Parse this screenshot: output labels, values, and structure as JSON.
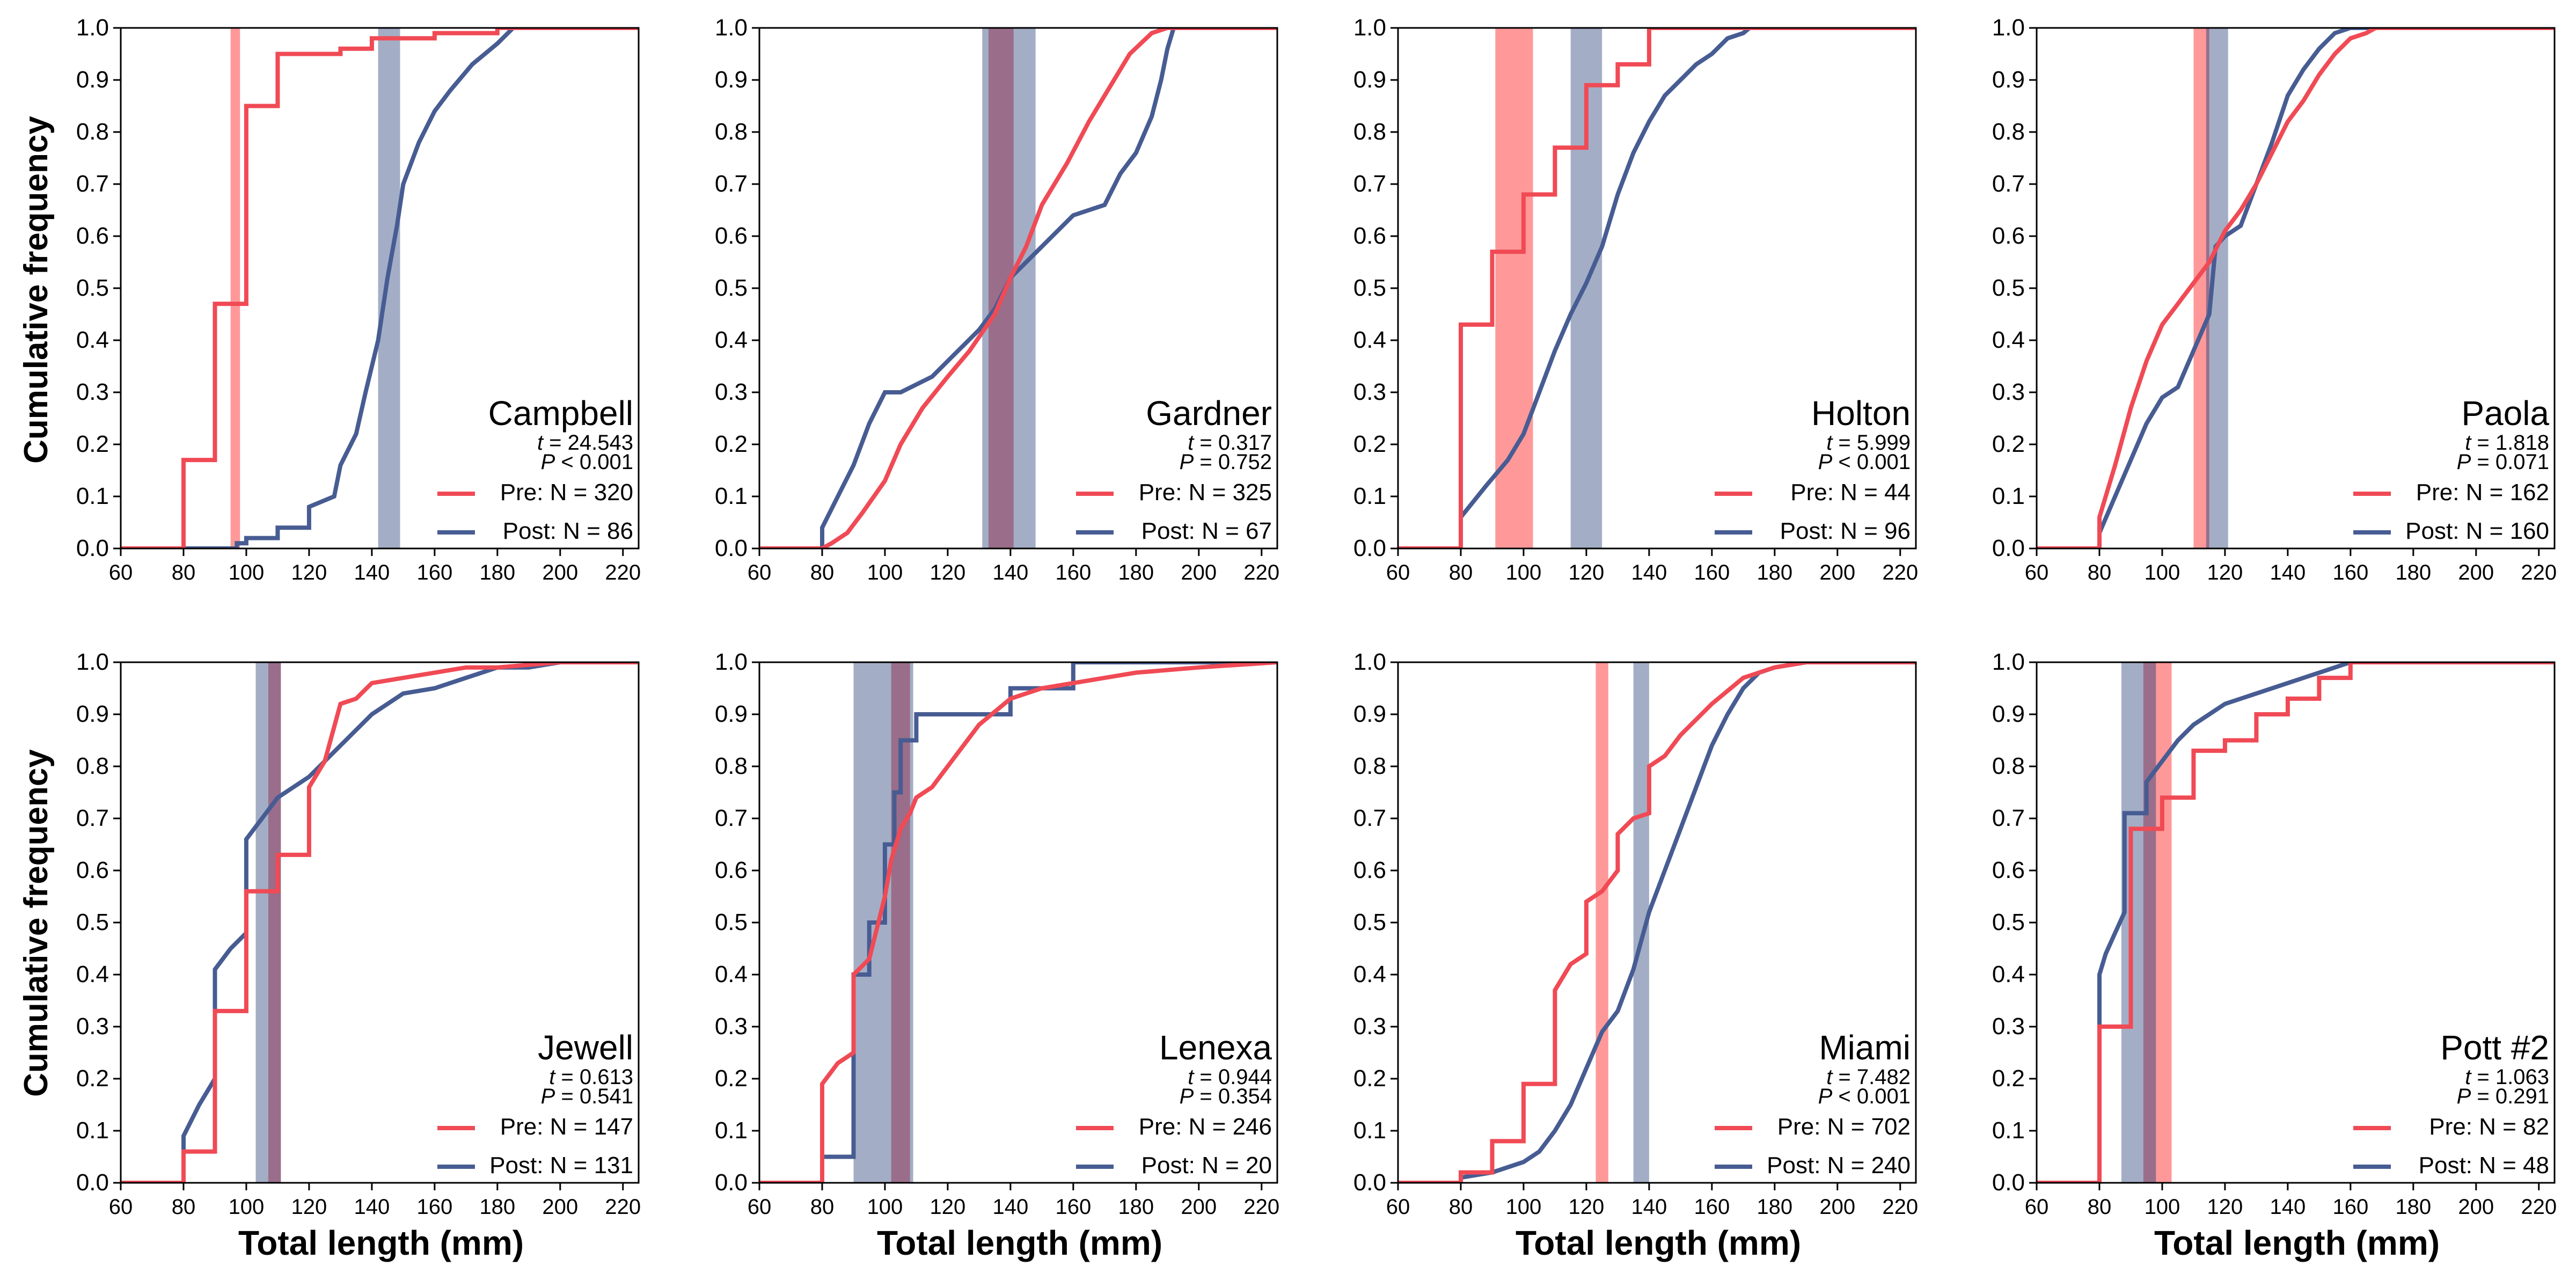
{
  "colors": {
    "pre": "#f04a55",
    "post": "#475c92",
    "pre_band": "#ff9999",
    "post_band": "#a3aec6",
    "overlap_band": "#9a6e8a"
  },
  "axis_labels": {
    "x": "Total length (mm)",
    "y": "Cumulative frequency"
  },
  "chart_data": [
    {
      "type": "line",
      "site": "Campbell",
      "t": "24.543",
      "p_rel": "<",
      "p": "0.001",
      "xlim": [
        60,
        225
      ],
      "ylim": [
        0,
        1
      ],
      "xticks": [
        60,
        80,
        100,
        120,
        140,
        160,
        180,
        200,
        220
      ],
      "yticks": [
        "0.0",
        "0.1",
        "0.2",
        "0.3",
        "0.4",
        "0.5",
        "0.6",
        "0.7",
        "0.8",
        "0.9",
        "1.0"
      ],
      "pre": {
        "label": "Pre: N = 320",
        "band": [
          95,
          98
        ],
        "x": [
          60,
          80,
          80,
          90,
          90,
          100,
          100,
          110,
          110,
          130,
          130,
          140,
          140,
          160,
          160,
          180,
          180,
          225
        ],
        "y": [
          0,
          0,
          0.17,
          0.17,
          0.47,
          0.47,
          0.85,
          0.85,
          0.95,
          0.95,
          0.96,
          0.96,
          0.98,
          0.98,
          0.99,
          0.99,
          1.0,
          1.0
        ]
      },
      "post": {
        "label": "Post: N = 86",
        "band": [
          142,
          149
        ],
        "x": [
          60,
          97,
          97,
          100,
          100,
          110,
          110,
          120,
          120,
          128,
          130,
          135,
          138,
          142,
          145,
          148,
          150,
          155,
          160,
          165,
          172,
          180,
          185,
          225
        ],
        "y": [
          0,
          0,
          0.01,
          0.01,
          0.02,
          0.02,
          0.04,
          0.04,
          0.08,
          0.1,
          0.16,
          0.22,
          0.3,
          0.4,
          0.52,
          0.62,
          0.7,
          0.78,
          0.84,
          0.88,
          0.93,
          0.97,
          1.0,
          1.0
        ]
      }
    },
    {
      "type": "line",
      "site": "Gardner",
      "t": "0.317",
      "p_rel": "=",
      "p": "0.752",
      "xlim": [
        60,
        225
      ],
      "ylim": [
        0,
        1
      ],
      "xticks": [
        60,
        80,
        100,
        120,
        140,
        160,
        180,
        200,
        220
      ],
      "yticks": [
        "0.0",
        "0.1",
        "0.2",
        "0.3",
        "0.4",
        "0.5",
        "0.6",
        "0.7",
        "0.8",
        "0.9",
        "1.0"
      ],
      "pre": {
        "label": "Pre: N = 325",
        "band": [
          133,
          141
        ],
        "x": [
          60,
          80,
          83,
          88,
          93,
          100,
          105,
          112,
          120,
          127,
          135,
          140,
          145,
          150,
          158,
          165,
          172,
          178,
          185,
          190,
          195,
          225
        ],
        "y": [
          0,
          0,
          0.01,
          0.03,
          0.07,
          0.13,
          0.2,
          0.27,
          0.33,
          0.38,
          0.45,
          0.52,
          0.58,
          0.66,
          0.74,
          0.82,
          0.89,
          0.95,
          0.99,
          1.0,
          1.0,
          1.0
        ]
      },
      "post": {
        "label": "Post: N = 67",
        "band": [
          131,
          148
        ],
        "x": [
          60,
          80,
          80,
          85,
          90,
          95,
          100,
          105,
          115,
          120,
          125,
          130,
          135,
          140,
          145,
          150,
          160,
          170,
          175,
          180,
          185,
          188,
          190,
          192,
          225
        ],
        "y": [
          0,
          0,
          0.04,
          0.1,
          0.16,
          0.24,
          0.3,
          0.3,
          0.33,
          0.36,
          0.39,
          0.42,
          0.46,
          0.52,
          0.55,
          0.58,
          0.64,
          0.66,
          0.72,
          0.76,
          0.83,
          0.9,
          0.96,
          1.0,
          1.0
        ]
      }
    },
    {
      "type": "line",
      "site": "Holton",
      "t": "5.999",
      "p_rel": "<",
      "p": "0.001",
      "xlim": [
        60,
        225
      ],
      "ylim": [
        0,
        1
      ],
      "xticks": [
        60,
        80,
        100,
        120,
        140,
        160,
        180,
        200,
        220
      ],
      "yticks": [
        "0.0",
        "0.1",
        "0.2",
        "0.3",
        "0.4",
        "0.5",
        "0.6",
        "0.7",
        "0.8",
        "0.9",
        "1.0"
      ],
      "pre": {
        "label": "Pre: N = 44",
        "band": [
          91,
          103
        ],
        "x": [
          60,
          80,
          80,
          90,
          90,
          100,
          100,
          110,
          110,
          120,
          120,
          130,
          130,
          140,
          140,
          225
        ],
        "y": [
          0,
          0,
          0.43,
          0.43,
          0.57,
          0.57,
          0.68,
          0.68,
          0.77,
          0.77,
          0.89,
          0.89,
          0.93,
          0.93,
          1.0,
          1.0
        ]
      },
      "post": {
        "label": "Post: N = 96",
        "band": [
          115,
          125
        ],
        "x": [
          60,
          80,
          80,
          88,
          95,
          100,
          105,
          110,
          115,
          120,
          125,
          130,
          135,
          140,
          145,
          150,
          155,
          160,
          165,
          170,
          172,
          225
        ],
        "y": [
          0,
          0,
          0.06,
          0.12,
          0.17,
          0.22,
          0.3,
          0.38,
          0.45,
          0.51,
          0.58,
          0.68,
          0.76,
          0.82,
          0.87,
          0.9,
          0.93,
          0.95,
          0.98,
          0.99,
          1.0,
          1.0
        ]
      }
    },
    {
      "type": "line",
      "site": "Paola",
      "t": "1.818",
      "p_rel": "=",
      "p": "0.071",
      "xlim": [
        60,
        225
      ],
      "ylim": [
        0,
        1
      ],
      "xticks": [
        60,
        80,
        100,
        120,
        140,
        160,
        180,
        200,
        220
      ],
      "yticks": [
        "0.0",
        "0.1",
        "0.2",
        "0.3",
        "0.4",
        "0.5",
        "0.6",
        "0.7",
        "0.8",
        "0.9",
        "1.0"
      ],
      "pre": {
        "label": "Pre: N = 162",
        "band": [
          110,
          115
        ],
        "x": [
          60,
          80,
          80,
          85,
          90,
          95,
          100,
          105,
          110,
          115,
          120,
          125,
          130,
          135,
          140,
          145,
          150,
          155,
          160,
          165,
          168,
          225
        ],
        "y": [
          0,
          0,
          0.06,
          0.16,
          0.27,
          0.36,
          0.43,
          0.47,
          0.51,
          0.55,
          0.61,
          0.65,
          0.7,
          0.76,
          0.82,
          0.86,
          0.91,
          0.95,
          0.98,
          0.99,
          1.0,
          1.0
        ]
      },
      "post": {
        "label": "Post: N = 160",
        "band": [
          114,
          121
        ],
        "x": [
          60,
          80,
          80,
          85,
          90,
          95,
          100,
          105,
          110,
          115,
          117,
          120,
          125,
          130,
          135,
          140,
          145,
          150,
          155,
          160,
          165,
          225
        ],
        "y": [
          0,
          0,
          0.03,
          0.1,
          0.17,
          0.24,
          0.29,
          0.31,
          0.38,
          0.45,
          0.58,
          0.6,
          0.62,
          0.7,
          0.78,
          0.87,
          0.92,
          0.96,
          0.99,
          1.0,
          1.0,
          1.0
        ]
      }
    },
    {
      "type": "line",
      "site": "Jewell",
      "t": "0.613",
      "p_rel": "=",
      "p": "0.541",
      "xlim": [
        60,
        225
      ],
      "ylim": [
        0,
        1
      ],
      "xticks": [
        60,
        80,
        100,
        120,
        140,
        160,
        180,
        200,
        220
      ],
      "yticks": [
        "0.0",
        "0.1",
        "0.2",
        "0.3",
        "0.4",
        "0.5",
        "0.6",
        "0.7",
        "0.8",
        "0.9",
        "1.0"
      ],
      "pre": {
        "label": "Pre: N = 147",
        "band": [
          107,
          111
        ],
        "x": [
          60,
          80,
          80,
          90,
          90,
          100,
          100,
          110,
          110,
          120,
          120,
          125,
          130,
          135,
          140,
          150,
          160,
          170,
          180,
          190,
          200,
          225
        ],
        "y": [
          0,
          0,
          0.06,
          0.06,
          0.33,
          0.33,
          0.56,
          0.56,
          0.63,
          0.63,
          0.76,
          0.81,
          0.92,
          0.93,
          0.96,
          0.97,
          0.98,
          0.99,
          0.99,
          0.995,
          1.0,
          1.0
        ]
      },
      "post": {
        "label": "Post: N = 131",
        "band": [
          103,
          111
        ],
        "x": [
          60,
          80,
          80,
          85,
          90,
          90,
          95,
          100,
          100,
          105,
          110,
          120,
          130,
          140,
          150,
          160,
          170,
          180,
          190,
          200,
          225
        ],
        "y": [
          0,
          0,
          0.09,
          0.15,
          0.2,
          0.41,
          0.45,
          0.48,
          0.66,
          0.7,
          0.74,
          0.78,
          0.84,
          0.9,
          0.94,
          0.95,
          0.97,
          0.99,
          0.99,
          1.0,
          1.0
        ]
      }
    },
    {
      "type": "line",
      "site": "Lenexa",
      "t": "0.944",
      "p_rel": "=",
      "p": "0.354",
      "xlim": [
        60,
        225
      ],
      "ylim": [
        0,
        1
      ],
      "xticks": [
        60,
        80,
        100,
        120,
        140,
        160,
        180,
        200,
        220
      ],
      "yticks": [
        "0.0",
        "0.1",
        "0.2",
        "0.3",
        "0.4",
        "0.5",
        "0.6",
        "0.7",
        "0.8",
        "0.9",
        "1.0"
      ],
      "pre": {
        "label": "Pre: N = 246",
        "band": [
          102,
          108
        ],
        "x": [
          60,
          80,
          80,
          85,
          90,
          90,
          95,
          100,
          102,
          105,
          108,
          110,
          115,
          120,
          125,
          130,
          140,
          150,
          160,
          170,
          180,
          200,
          225
        ],
        "y": [
          0,
          0,
          0.19,
          0.23,
          0.25,
          0.4,
          0.43,
          0.55,
          0.62,
          0.68,
          0.71,
          0.74,
          0.76,
          0.8,
          0.84,
          0.88,
          0.93,
          0.95,
          0.96,
          0.97,
          0.98,
          0.99,
          1.0
        ]
      },
      "post": {
        "label": "Post: N = 20",
        "band": [
          90,
          109
        ],
        "x": [
          60,
          80,
          80,
          90,
          90,
          95,
          95,
          100,
          100,
          103,
          103,
          105,
          105,
          110,
          110,
          140,
          140,
          160,
          160,
          225
        ],
        "y": [
          0,
          0,
          0.05,
          0.05,
          0.4,
          0.4,
          0.5,
          0.5,
          0.65,
          0.65,
          0.75,
          0.75,
          0.85,
          0.85,
          0.9,
          0.9,
          0.95,
          0.95,
          1.0,
          1.0
        ]
      }
    },
    {
      "type": "line",
      "site": "Miami",
      "t": "7.482",
      "p_rel": "<",
      "p": "0.001",
      "xlim": [
        60,
        225
      ],
      "ylim": [
        0,
        1
      ],
      "xticks": [
        60,
        80,
        100,
        120,
        140,
        160,
        180,
        200,
        220
      ],
      "yticks": [
        "0.0",
        "0.1",
        "0.2",
        "0.3",
        "0.4",
        "0.5",
        "0.6",
        "0.7",
        "0.8",
        "0.9",
        "1.0"
      ],
      "pre": {
        "label": "Pre: N = 702",
        "band": [
          123,
          127
        ],
        "x": [
          60,
          80,
          80,
          90,
          90,
          100,
          100,
          110,
          110,
          115,
          120,
          120,
          125,
          130,
          130,
          135,
          140,
          140,
          145,
          150,
          160,
          170,
          180,
          190,
          225
        ],
        "y": [
          0,
          0,
          0.02,
          0.02,
          0.08,
          0.08,
          0.19,
          0.19,
          0.37,
          0.42,
          0.44,
          0.54,
          0.56,
          0.6,
          0.67,
          0.7,
          0.71,
          0.8,
          0.82,
          0.86,
          0.92,
          0.97,
          0.99,
          1.0,
          1.0
        ]
      },
      "post": {
        "label": "Post: N = 240",
        "band": [
          135,
          140
        ],
        "x": [
          60,
          80,
          80,
          90,
          100,
          105,
          110,
          115,
          120,
          125,
          130,
          135,
          140,
          145,
          150,
          155,
          160,
          165,
          170,
          175,
          180,
          190,
          225
        ],
        "y": [
          0,
          0,
          0.01,
          0.02,
          0.04,
          0.06,
          0.1,
          0.15,
          0.22,
          0.29,
          0.33,
          0.41,
          0.52,
          0.6,
          0.68,
          0.76,
          0.84,
          0.9,
          0.95,
          0.98,
          0.99,
          1.0,
          1.0
        ]
      }
    },
    {
      "type": "line",
      "site": "Pott #2",
      "t": "1.063",
      "p_rel": "=",
      "p": "0.291",
      "xlim": [
        60,
        225
      ],
      "ylim": [
        0,
        1
      ],
      "xticks": [
        60,
        80,
        100,
        120,
        140,
        160,
        180,
        200,
        220
      ],
      "yticks": [
        "0.0",
        "0.1",
        "0.2",
        "0.3",
        "0.4",
        "0.5",
        "0.6",
        "0.7",
        "0.8",
        "0.9",
        "1.0"
      ],
      "pre": {
        "label": "Pre: N = 82",
        "band": [
          94,
          103
        ],
        "x": [
          60,
          80,
          80,
          90,
          90,
          100,
          100,
          110,
          110,
          120,
          120,
          130,
          130,
          140,
          140,
          150,
          150,
          160,
          160,
          225
        ],
        "y": [
          0,
          0,
          0.3,
          0.3,
          0.68,
          0.68,
          0.74,
          0.74,
          0.83,
          0.83,
          0.85,
          0.85,
          0.9,
          0.9,
          0.93,
          0.93,
          0.97,
          0.97,
          1.0,
          1.0
        ]
      },
      "post": {
        "label": "Post: N = 48",
        "band": [
          87,
          98
        ],
        "x": [
          60,
          80,
          80,
          82,
          85,
          88,
          88,
          95,
          95,
          100,
          105,
          110,
          115,
          120,
          130,
          140,
          150,
          160,
          165,
          225
        ],
        "y": [
          0,
          0,
          0.4,
          0.44,
          0.48,
          0.52,
          0.71,
          0.71,
          0.77,
          0.81,
          0.85,
          0.88,
          0.9,
          0.92,
          0.94,
          0.96,
          0.98,
          1.0,
          1.0,
          1.0
        ]
      }
    }
  ]
}
